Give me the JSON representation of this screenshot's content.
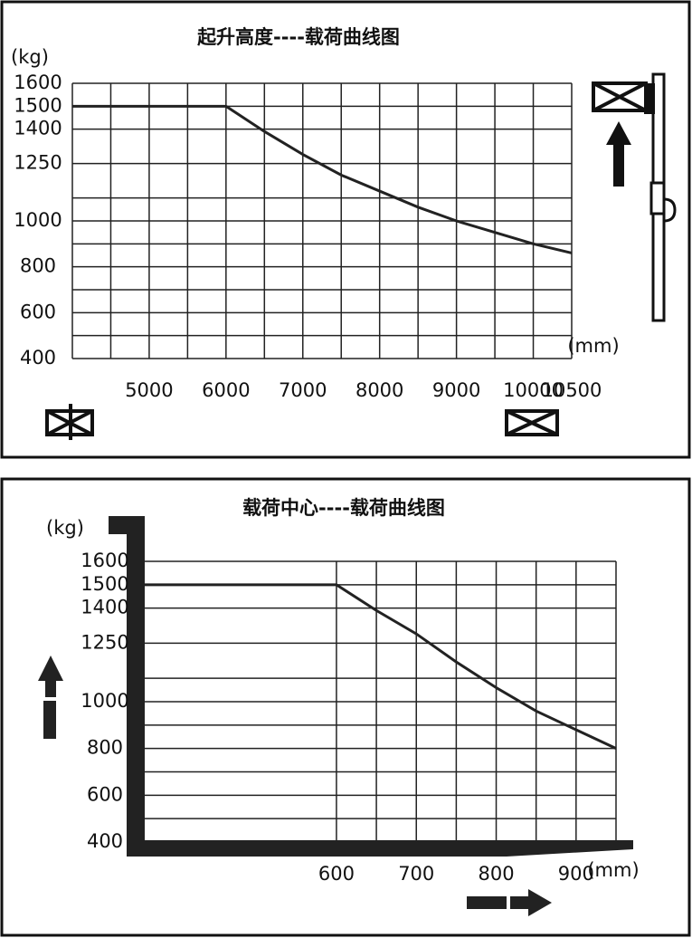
{
  "chart_data": [
    {
      "type": "line",
      "title": "起升高度----载荷曲线图",
      "y_label": "(kg)",
      "x_label": "(mm)",
      "x": [
        4000,
        6000,
        6500,
        7000,
        7500,
        8000,
        8500,
        9000,
        9500,
        10000,
        10500
      ],
      "values": [
        1500,
        1500,
        1390,
        1290,
        1200,
        1130,
        1060,
        1000,
        950,
        900,
        860
      ],
      "color": "#222222",
      "xlim": [
        4000,
        10500
      ],
      "xticks": [
        5000,
        6000,
        7000,
        8000,
        9000,
        10000,
        10500
      ],
      "ylim": [
        400,
        1600
      ],
      "yticks": [
        400,
        600,
        800,
        1000,
        1250,
        1400,
        1500,
        1600
      ],
      "xgrid": [
        4000,
        4500,
        5000,
        5500,
        6000,
        6500,
        7000,
        7500,
        8000,
        8500,
        9000,
        9500,
        10000,
        10500
      ],
      "ygrid": [
        400,
        500,
        600,
        700,
        800,
        900,
        1000,
        1100,
        1250,
        1400,
        1500,
        1600
      ],
      "grid": true
    },
    {
      "type": "line",
      "title": "载荷中心----载荷曲线图",
      "y_label": "(kg)",
      "x_label": "(mm)",
      "x": [
        360,
        600,
        650,
        700,
        750,
        800,
        850,
        900,
        950
      ],
      "values": [
        1500,
        1500,
        1390,
        1290,
        1170,
        1060,
        960,
        880,
        800
      ],
      "color": "#222222",
      "xlim": [
        360,
        950
      ],
      "xticks": [
        600,
        700,
        800,
        900
      ],
      "ylim": [
        400,
        1600
      ],
      "yticks": [
        400,
        600,
        800,
        1000,
        1250,
        1400,
        1500,
        1600
      ],
      "xgrid": [
        600,
        650,
        700,
        750,
        800,
        850,
        900,
        950
      ],
      "ygrid": [
        400,
        500,
        600,
        700,
        800,
        900,
        1000,
        1100,
        1250,
        1400,
        1500,
        1600
      ],
      "grid": true
    }
  ]
}
